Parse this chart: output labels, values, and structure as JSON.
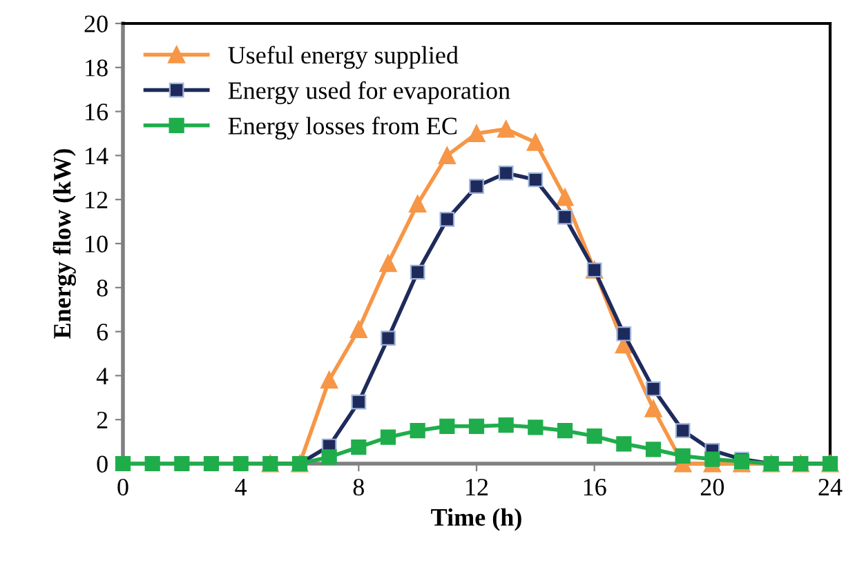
{
  "chart_data": {
    "type": "line",
    "xlabel": "Time (h)",
    "ylabel": "Energy flow (kW)",
    "x": [
      0,
      1,
      2,
      3,
      4,
      5,
      6,
      7,
      8,
      9,
      10,
      11,
      12,
      13,
      14,
      15,
      16,
      17,
      18,
      19,
      20,
      21,
      22,
      23,
      24
    ],
    "xlim": [
      0,
      24
    ],
    "xticks": [
      0,
      4,
      8,
      12,
      16,
      20,
      24
    ],
    "ylim": [
      0,
      20
    ],
    "yticks": [
      0,
      2,
      4,
      6,
      8,
      10,
      12,
      14,
      16,
      18,
      20
    ],
    "grid": false,
    "legend": "top left",
    "line_style": "solid",
    "series": [
      {
        "name": "Useful energy supplied",
        "color": "#f79646",
        "marker": "triangle",
        "values": [
          null,
          null,
          null,
          null,
          null,
          0,
          0,
          3.8,
          6.1,
          9.1,
          11.8,
          14.0,
          15.0,
          15.2,
          14.6,
          12.1,
          8.8,
          5.4,
          2.5,
          0,
          0,
          0,
          0,
          0,
          0
        ]
      },
      {
        "name": "Energy used for evaporation",
        "color": "#1f2a5c",
        "marker": "square",
        "values": [
          null,
          null,
          null,
          null,
          null,
          0,
          0,
          0.8,
          2.8,
          5.7,
          8.7,
          11.1,
          12.6,
          13.2,
          12.9,
          11.2,
          8.8,
          5.9,
          3.4,
          1.5,
          0.6,
          0.2,
          0,
          0,
          0
        ]
      },
      {
        "name": "Energy losses from EC",
        "color": "#1fad4b",
        "marker": "square",
        "values": [
          0,
          0,
          0,
          0,
          0,
          0,
          0,
          0.3,
          0.75,
          1.2,
          1.5,
          1.7,
          1.7,
          1.75,
          1.65,
          1.5,
          1.25,
          0.9,
          0.65,
          0.35,
          0.2,
          0.1,
          0,
          0,
          0
        ]
      }
    ]
  }
}
